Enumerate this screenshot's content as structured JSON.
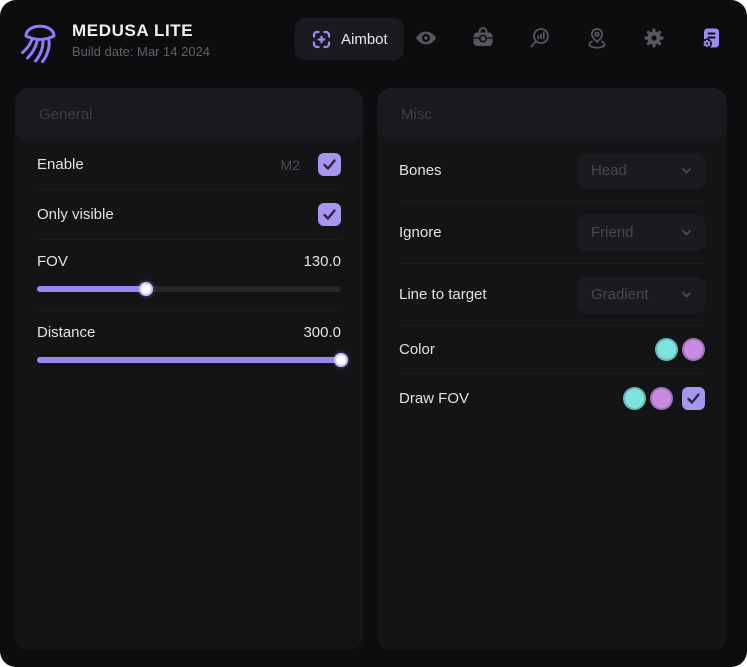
{
  "header": {
    "title": "MEDUSA LITE",
    "subtitle": "Build date: Mar 14 2024",
    "active_tab": "Aimbot",
    "nav_icons": [
      "eye",
      "briefcase",
      "search-stats",
      "location-pin",
      "settings-gear",
      "scripts-config"
    ]
  },
  "colors": {
    "accent_purple": "#9c86ef",
    "checkbox_purple": "#a795f0",
    "swatch_cyan": "#7ee3dc",
    "swatch_purple": "#c98ae2"
  },
  "general": {
    "title": "General",
    "enable": {
      "label": "Enable",
      "keybind": "M2",
      "checked": true
    },
    "only_visible": {
      "label": "Only visible",
      "checked": true
    },
    "fov": {
      "label": "FOV",
      "value": "130.0",
      "percent": 36
    },
    "distance": {
      "label": "Distance",
      "value": "300.0",
      "percent": 100
    }
  },
  "misc": {
    "title": "Misc",
    "bones": {
      "label": "Bones",
      "value": "Head"
    },
    "ignore": {
      "label": "Ignore",
      "value": "Friend"
    },
    "line_to_target": {
      "label": "Line to target",
      "value": "Gradient"
    },
    "color": {
      "label": "Color",
      "swatches": [
        "#7ee3dc",
        "#c98ae2"
      ]
    },
    "draw_fov": {
      "label": "Draw FOV",
      "swatches": [
        "#7ee3dc",
        "#c98ae2"
      ],
      "checked": true
    }
  }
}
